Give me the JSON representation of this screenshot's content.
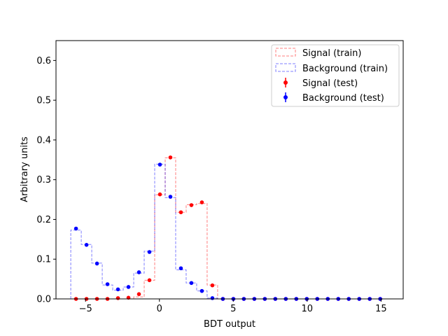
{
  "chart_data": {
    "type": "histogram",
    "title": "",
    "xlabel": "BDT output",
    "ylabel": "Arbitrary units",
    "xlim": [
      -7.0,
      16.5
    ],
    "ylim": [
      0,
      0.65
    ],
    "xticks": [
      -5,
      0,
      5,
      10,
      15
    ],
    "xtick_labels": [
      "−5",
      "0",
      "5",
      "10",
      "15"
    ],
    "yticks": [
      0.0,
      0.1,
      0.2,
      0.3,
      0.4,
      0.5,
      0.6
    ],
    "ytick_labels": [
      "0.0",
      "0.1",
      "0.2",
      "0.3",
      "0.4",
      "0.5",
      "0.6"
    ],
    "grid": false,
    "legend_position": "top-right",
    "legend": [
      {
        "label": "Signal (train)",
        "style": "dashed-box",
        "color": "#ff0000"
      },
      {
        "label": "Background (train)",
        "style": "dashed-box",
        "color": "#0000ff"
      },
      {
        "label": "Signal (test)",
        "style": "errorbar-point",
        "color": "#ff0000"
      },
      {
        "label": "Background (test)",
        "style": "errorbar-point",
        "color": "#0000ff"
      }
    ],
    "bin_edges": [
      -6.0,
      -5.29,
      -4.58,
      -3.87,
      -3.16,
      -2.45,
      -1.74,
      -1.03,
      -0.32,
      0.39,
      1.1,
      1.81,
      2.52,
      3.23,
      3.94,
      4.65,
      5.36,
      6.07,
      6.78,
      7.49,
      8.2,
      8.91,
      9.62,
      10.33,
      11.04,
      11.75,
      12.46,
      13.17,
      13.88,
      14.59,
      15.3
    ],
    "series": [
      {
        "name": "Signal (train)",
        "kind": "step",
        "color": "#ff0000",
        "values": [
          0,
          0,
          0,
          0,
          0,
          0,
          0.005,
          0.047,
          0.262,
          0.355,
          0.218,
          0.237,
          0.24,
          0.035,
          0,
          0,
          0,
          0,
          0,
          0,
          0,
          0,
          0,
          0,
          0,
          0,
          0,
          0,
          0,
          0
        ]
      },
      {
        "name": "Background (train)",
        "kind": "step",
        "color": "#0000ff",
        "values": [
          0.173,
          0.137,
          0.09,
          0.035,
          0.022,
          0.03,
          0.065,
          0.12,
          0.339,
          0.255,
          0.073,
          0.04,
          0.02,
          0.002,
          0,
          0,
          0,
          0,
          0,
          0,
          0,
          0,
          0,
          0,
          0,
          0,
          0,
          0,
          0,
          0
        ]
      },
      {
        "name": "Signal (test)",
        "kind": "points",
        "color": "#ff0000",
        "values": [
          0,
          0,
          0,
          0,
          0.002,
          0.003,
          0.012,
          0.047,
          0.263,
          0.356,
          0.218,
          0.236,
          0.243,
          0.034,
          0,
          0,
          0,
          0,
          0,
          0,
          0,
          0,
          0,
          0,
          0,
          0,
          0,
          0,
          0,
          0
        ]
      },
      {
        "name": "Background (test)",
        "kind": "points",
        "color": "#0000ff",
        "values": [
          0.177,
          0.136,
          0.089,
          0.037,
          0.024,
          0.03,
          0.067,
          0.118,
          0.338,
          0.257,
          0.077,
          0.04,
          0.02,
          0.002,
          0,
          0,
          0,
          0,
          0,
          0,
          0,
          0,
          0,
          0,
          0,
          0,
          0,
          0,
          0,
          0
        ]
      }
    ]
  }
}
